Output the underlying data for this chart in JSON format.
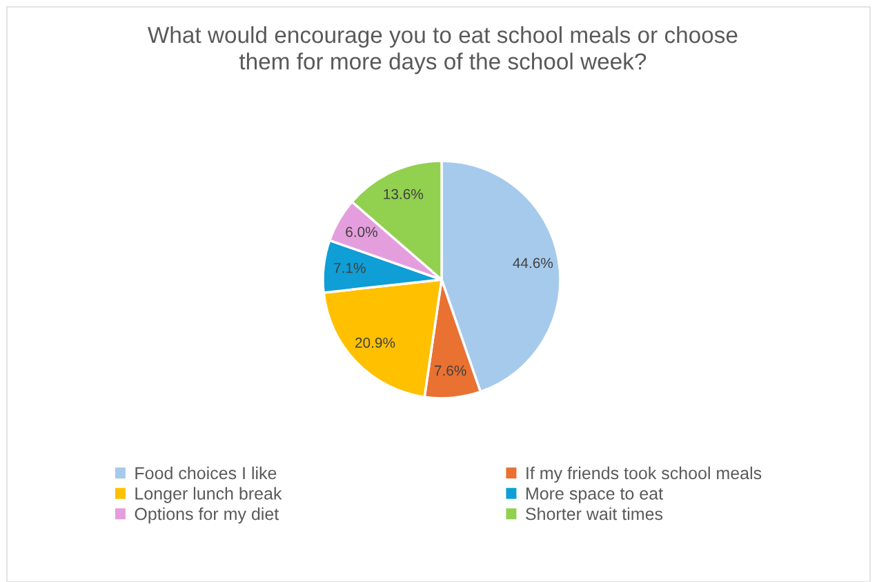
{
  "chart_data": {
    "type": "pie",
    "title": "What would encourage you to eat school meals or choose\nthem for more days of the school week?",
    "categories": [
      "Food choices I like",
      "If my friends took school meals",
      "Longer lunch break",
      "More space to eat",
      "Options for my diet",
      "Shorter wait times"
    ],
    "values": [
      44.6,
      7.6,
      20.9,
      7.1,
      6.0,
      13.6
    ],
    "value_labels": [
      "44.6%",
      "7.6%",
      "20.9%",
      "7.1%",
      "6.0%",
      "13.6%"
    ],
    "colors": [
      "#a6caec",
      "#e97132",
      "#ffc000",
      "#0f9ed5",
      "#e49edd",
      "#92d050"
    ],
    "legend": "bottom"
  }
}
